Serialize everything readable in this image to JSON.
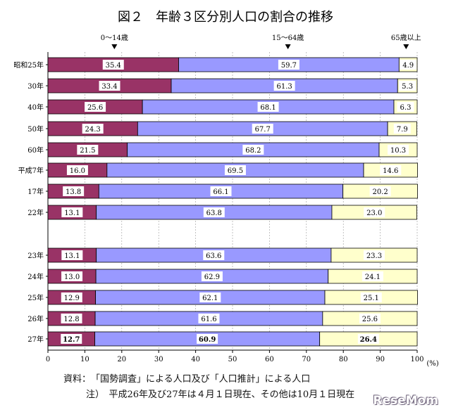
{
  "chart_data": {
    "type": "bar",
    "stacked": true,
    "orientation": "horizontal",
    "title": "図２　年齢３区分別人口の割合の推移",
    "categories": [
      "昭和25年",
      "30年",
      "40年",
      "50年",
      "60年",
      "平成7年",
      "17年",
      "22年",
      "23年",
      "24年",
      "25年",
      "26年",
      "27年"
    ],
    "series": [
      {
        "name": "0～14歳",
        "color": "#993366",
        "values": [
          35.4,
          33.4,
          25.6,
          24.3,
          21.5,
          16.0,
          13.8,
          13.1,
          13.1,
          13.0,
          12.9,
          12.8,
          12.7
        ]
      },
      {
        "name": "15～64歳",
        "color": "#9999ff",
        "values": [
          59.7,
          61.3,
          68.1,
          67.7,
          68.2,
          69.5,
          66.1,
          63.8,
          63.6,
          62.9,
          62.1,
          61.6,
          60.9
        ]
      },
      {
        "name": "65歳以上",
        "color": "#ffffcc",
        "values": [
          4.9,
          5.3,
          6.3,
          7.9,
          10.3,
          14.6,
          20.2,
          23.0,
          23.3,
          24.1,
          25.1,
          25.6,
          26.4
        ]
      }
    ],
    "value_labels": [
      [
        "35.4",
        "59.7",
        "4.9"
      ],
      [
        "33.4",
        "61.3",
        "5.3"
      ],
      [
        "25.6",
        "68.1",
        "6.3"
      ],
      [
        "24.3",
        "67.7",
        "7.9"
      ],
      [
        "21.5",
        "68.2",
        "10.3"
      ],
      [
        "16.0",
        "69.5",
        "14.6"
      ],
      [
        "13.8",
        "66.1",
        "20.2"
      ],
      [
        "13.1",
        "63.8",
        "23.0"
      ],
      [
        "13.1",
        "63.6",
        "23.3"
      ],
      [
        "13.0",
        "62.9",
        "24.1"
      ],
      [
        "12.9",
        "62.1",
        "25.1"
      ],
      [
        "12.8",
        "61.6",
        "25.6"
      ],
      [
        "12.7",
        "60.9",
        "26.4"
      ]
    ],
    "bold_row_index": 12,
    "xlim": [
      0,
      100
    ],
    "xticks": [
      "0",
      "10",
      "20",
      "30",
      "40",
      "50",
      "60",
      "70",
      "80",
      "90",
      "100"
    ],
    "xunit": "(%)",
    "legend_markers": [
      {
        "label": "0～14歳",
        "at": 18
      },
      {
        "label": "15～64歳",
        "at": 65
      },
      {
        "label": "65歳以上",
        "at": 97
      }
    ],
    "gap_after_index": 7
  },
  "notes": {
    "source": "資料：　「国勢調査」による人口及び「人口推計」による人口",
    "note": "注）　平成26年及び27年は４月１日現在、その他は10月１日現在"
  },
  "watermark": "ReseMom"
}
